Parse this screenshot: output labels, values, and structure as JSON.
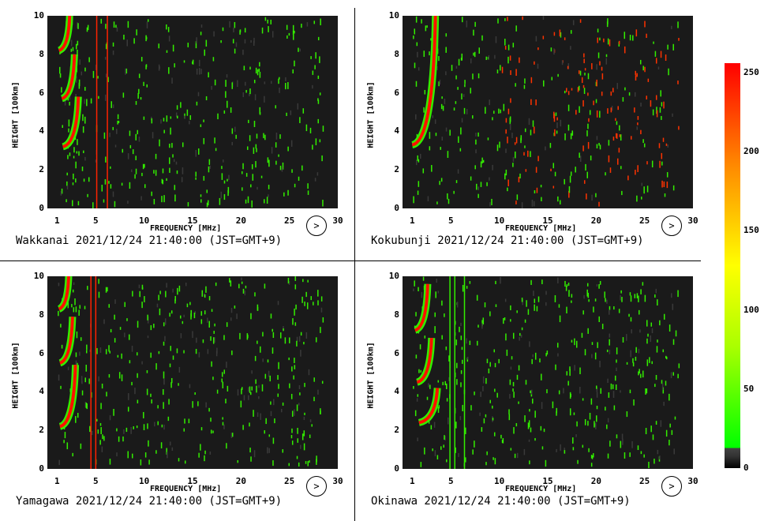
{
  "chart_data": [
    {
      "type": "heatmap",
      "station": "Wakkanai",
      "caption": "Wakkanai 2021/12/24 21:40:00 (JST=GMT+9)",
      "xlabel": "FREQUENCY [MHz]",
      "ylabel": "HEIGHT [100km]",
      "xlim": [
        0,
        30
      ],
      "ylim": [
        0,
        10
      ],
      "xticks": [
        "1",
        "5",
        "10",
        "15",
        "20",
        "25",
        "30"
      ],
      "yticks": [
        "0",
        "2",
        "4",
        "6",
        "8",
        "10"
      ],
      "traces": [
        {
          "y0": 8.2,
          "y1": 10,
          "f0": 1.2,
          "f1": 2.3
        },
        {
          "y0": 5.7,
          "y1": 8,
          "f0": 1.5,
          "f1": 2.8
        },
        {
          "y0": 3.2,
          "y1": 5.8,
          "f0": 1.6,
          "f1": 3.2
        }
      ],
      "lines": [
        5.1,
        6.2
      ]
    },
    {
      "type": "heatmap",
      "station": "Kokubunji",
      "caption": "Kokubunji 2021/12/24 21:40:00 (JST=GMT+9)",
      "xlabel": "FREQUENCY [MHz]",
      "ylabel": "HEIGHT [100km]",
      "xlim": [
        0,
        30
      ],
      "ylim": [
        0,
        10
      ],
      "xticks": [
        "1",
        "5",
        "10",
        "15",
        "20",
        "25",
        "30"
      ],
      "yticks": [
        "0",
        "2",
        "4",
        "6",
        "8",
        "10"
      ],
      "traces": [
        {
          "y0": 3.3,
          "y1": 10,
          "f0": 1.0,
          "f1": 3.4
        }
      ],
      "lines": []
    },
    {
      "type": "heatmap",
      "station": "Yamagawa",
      "caption": "Yamagawa 2021/12/24 21:40:00 (JST=GMT+9)",
      "xlabel": "FREQUENCY [MHz]",
      "ylabel": "HEIGHT [100km]",
      "xlim": [
        0,
        30
      ],
      "ylim": [
        0,
        10
      ],
      "xticks": [
        "1",
        "5",
        "10",
        "15",
        "20",
        "25",
        "30"
      ],
      "yticks": [
        "0",
        "2",
        "4",
        "6",
        "8",
        "10"
      ],
      "traces": [
        {
          "y0": 8.3,
          "y1": 10,
          "f0": 1.2,
          "f1": 2.2
        },
        {
          "y0": 5.5,
          "y1": 7.9,
          "f0": 1.3,
          "f1": 2.6
        },
        {
          "y0": 2.2,
          "y1": 5.4,
          "f0": 1.3,
          "f1": 2.9
        }
      ],
      "lines": [
        4.5,
        5.0
      ]
    },
    {
      "type": "heatmap",
      "station": "Okinawa",
      "caption": "Okinawa 2021/12/24 21:40:00 (JST=GMT+9)",
      "xlabel": "FREQUENCY [MHz]",
      "ylabel": "HEIGHT [100km]",
      "xlim": [
        0,
        30
      ],
      "ylim": [
        0,
        10
      ],
      "xticks": [
        "1",
        "5",
        "10",
        "15",
        "20",
        "25",
        "30"
      ],
      "yticks": [
        "0",
        "2",
        "4",
        "6",
        "8",
        "10"
      ],
      "traces": [
        {
          "y0": 7.2,
          "y1": 9.6,
          "f0": 1.3,
          "f1": 2.6
        },
        {
          "y0": 4.5,
          "y1": 6.8,
          "f0": 1.5,
          "f1": 3.0
        },
        {
          "y0": 2.4,
          "y1": 4.2,
          "f0": 1.7,
          "f1": 3.6
        }
      ],
      "lines": [
        4.9,
        5.4,
        6.4
      ]
    }
  ],
  "colorbar": {
    "ticks": [
      "250",
      "200",
      "150",
      "100",
      "50",
      "0"
    ],
    "min": 0,
    "max": 256
  },
  "polar_symbol": ">"
}
